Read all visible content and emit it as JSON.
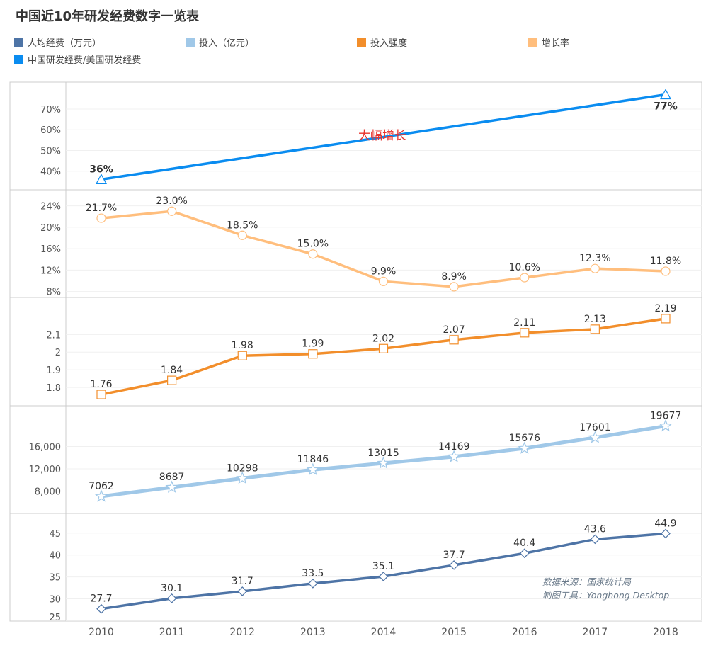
{
  "chart_data": {
    "title": "中国近10年研发经费数字一览表",
    "type": "line",
    "categories": [
      "2010",
      "2011",
      "2012",
      "2013",
      "2014",
      "2015",
      "2016",
      "2017",
      "2018"
    ],
    "legend": [
      {
        "name": "人均经费（万元）",
        "color": "#4e74a6"
      },
      {
        "name": "投入（亿元）",
        "color": "#a0c8e8"
      },
      {
        "name": "投入强度",
        "color": "#f28e2b"
      },
      {
        "name": "增长率",
        "color": "#ffbe7d"
      },
      {
        "name": "中国研发经费/美国研发经费",
        "color": "#0a8cf0"
      }
    ],
    "panels": [
      {
        "series": "中国研发经费/美国研发经费",
        "color": "#0a8cf0",
        "marker": "triangle",
        "values": [
          36,
          null,
          null,
          null,
          null,
          null,
          null,
          null,
          77
        ],
        "labels": [
          "36%",
          "",
          "",
          "",
          "",
          "",
          "",
          "",
          "77%"
        ],
        "ticks": [
          {
            "v": 70,
            "t": "70%"
          },
          {
            "v": 60,
            "t": "60%"
          },
          {
            "v": 50,
            "t": "50%"
          },
          {
            "v": 40,
            "t": "40%"
          }
        ],
        "ylim": [
          31,
          83
        ],
        "annotation": "大幅增长"
      },
      {
        "series": "增长率",
        "color": "#ffbe7d",
        "marker": "circle",
        "values": [
          21.7,
          23.0,
          18.5,
          15.0,
          9.9,
          8.9,
          10.6,
          12.3,
          11.8
        ],
        "labels": [
          "21.7%",
          "23.0%",
          "18.5%",
          "15.0%",
          "9.9%",
          "8.9%",
          "10.6%",
          "12.3%",
          "11.8%"
        ],
        "ticks": [
          {
            "v": 24,
            "t": "24%"
          },
          {
            "v": 20,
            "t": "20%"
          },
          {
            "v": 16,
            "t": "16%"
          },
          {
            "v": 12,
            "t": "12%"
          },
          {
            "v": 8,
            "t": "8%"
          }
        ],
        "ylim": [
          6.9,
          27
        ]
      },
      {
        "series": "投入强度",
        "color": "#f28e2b",
        "marker": "square",
        "values": [
          1.76,
          1.84,
          1.98,
          1.99,
          2.02,
          2.07,
          2.11,
          2.13,
          2.19
        ],
        "labels": [
          "1.76",
          "1.84",
          "1.98",
          "1.99",
          "2.02",
          "2.07",
          "2.11",
          "2.13",
          "2.19"
        ],
        "ticks": [
          {
            "v": 2.1,
            "t": "2.1"
          },
          {
            "v": 2,
            "t": "2"
          },
          {
            "v": 1.9,
            "t": "1.9"
          },
          {
            "v": 1.8,
            "t": "1.8"
          }
        ],
        "ylim": [
          1.7,
          2.31
        ]
      },
      {
        "series": "投入（亿元）",
        "color": "#a0c8e8",
        "marker": "star",
        "values": [
          7062,
          8687,
          10298,
          11846,
          13015,
          14169,
          15676,
          17601,
          19677
        ],
        "labels": [
          "7062",
          "8687",
          "10298",
          "11846",
          "13015",
          "14169",
          "15676",
          "17601",
          "19677"
        ],
        "ticks": [
          {
            "v": 16000,
            "t": "16,000"
          },
          {
            "v": 12000,
            "t": "12,000"
          },
          {
            "v": 8000,
            "t": "8,000"
          }
        ],
        "ylim": [
          4000,
          23300
        ]
      },
      {
        "series": "人均经费（万元）",
        "color": "#4e74a6",
        "marker": "diamond",
        "values": [
          27.7,
          30.1,
          31.7,
          33.5,
          35.1,
          37.7,
          40.4,
          43.6,
          44.9
        ],
        "labels": [
          "27.7",
          "30.1",
          "31.7",
          "33.5",
          "35.1",
          "37.7",
          "40.4",
          "43.6",
          "44.9"
        ],
        "ticks": [
          {
            "v": 45,
            "t": "45"
          },
          {
            "v": 40,
            "t": "40"
          },
          {
            "v": 35,
            "t": "35"
          },
          {
            "v": 30,
            "t": "30"
          },
          {
            "v": 25,
            "t": "25"
          }
        ],
        "ylim": [
          24.9,
          49.5
        ]
      }
    ]
  },
  "source": {
    "line1": "数据来源：国家统计局",
    "line2": "制图工具：Yonghong Desktop"
  }
}
